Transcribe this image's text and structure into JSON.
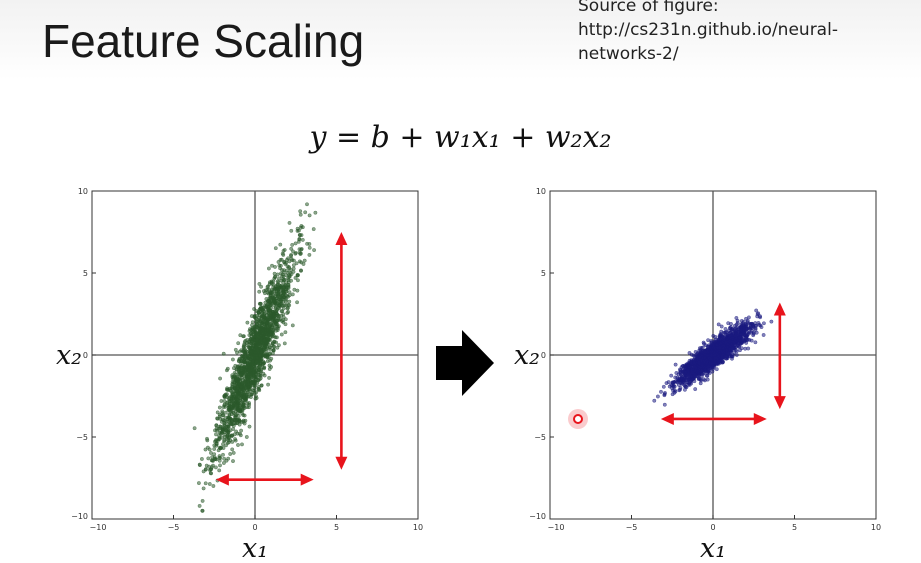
{
  "slide": {
    "title": "Feature Scaling",
    "source_lines": [
      "Source of figure:",
      "http://cs231n.github.io/neural-",
      "networks-2/"
    ],
    "equation": "y = b + w₁x₁ + w₂x₂"
  },
  "colors": {
    "left_points": "#2b5a2b",
    "right_points": "#1a1a80",
    "arrow": "#e8141c",
    "cursor": "#e8141c"
  },
  "chart_data": [
    {
      "type": "scatter",
      "xlabel": "x₁",
      "ylabel": "x₂",
      "xlim": [
        -10,
        10
      ],
      "ylim": [
        -10,
        10
      ],
      "xticks": [
        "−10",
        "−5",
        "0",
        "5",
        "10"
      ],
      "yticks": [
        "10",
        "5",
        "0",
        "−5",
        "−10"
      ],
      "axis_lines_at_zero": true,
      "point_cloud": {
        "center": [
          0,
          0
        ],
        "x_spread": 1.2,
        "slope": 2.3,
        "y_noise": 1.2,
        "count": 1800
      },
      "annotations": [
        {
          "kind": "double-arrow",
          "direction": "vertical",
          "x": 5.3,
          "from": -7,
          "to": 7.5
        },
        {
          "kind": "double-arrow",
          "direction": "horizontal",
          "y": -7.6,
          "from": -2.4,
          "to": 3.6
        }
      ]
    },
    {
      "type": "scatter",
      "xlabel": "x₁",
      "ylabel": "x₂",
      "xlim": [
        -10,
        10
      ],
      "ylim": [
        -10,
        10
      ],
      "xticks": [
        "−10",
        "−5",
        "0",
        "5",
        "10"
      ],
      "yticks": [
        "10",
        "5",
        "0",
        "−5",
        "−10"
      ],
      "axis_lines_at_zero": true,
      "point_cloud": {
        "center": [
          0,
          0
        ],
        "x_spread": 1.1,
        "slope": 0.7,
        "y_noise": 0.4,
        "count": 1800
      },
      "annotations": [
        {
          "kind": "double-arrow",
          "direction": "vertical",
          "x": 4.1,
          "from": -3.3,
          "to": 3.2
        },
        {
          "kind": "double-arrow",
          "direction": "horizontal",
          "y": -3.9,
          "from": -3.2,
          "to": 3.3
        }
      ]
    }
  ]
}
